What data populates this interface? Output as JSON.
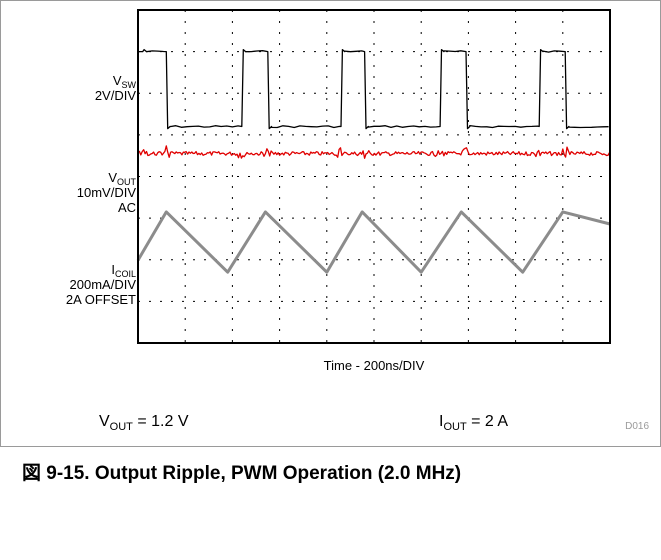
{
  "chart_data": {
    "type": "line",
    "title": "",
    "xlabel": "Time - 200ns/DIV",
    "grid": true,
    "divisions": {
      "x": 10,
      "y": 8
    },
    "channels": [
      {
        "name_main": "V",
        "name_sub": "SW",
        "scale": "2V/DIV",
        "extra": "",
        "color": "#000000",
        "shape": "square",
        "high_div": 1.0,
        "low_div": 2.8,
        "rise_div": [
          0.1,
          2.2,
          4.3,
          6.4,
          8.5
        ],
        "fall_div": [
          0.6,
          2.75,
          4.8,
          6.95,
          9.05
        ]
      },
      {
        "name_main": "V",
        "name_sub": "OUT",
        "scale": "10mV/DIV",
        "extra": "AC",
        "color": "#e00000",
        "shape": "ripple",
        "center_div": 3.45
      },
      {
        "name_main": "I",
        "name_sub": "COIL",
        "scale": "200mA/DIV",
        "extra": "2A OFFSET",
        "color": "#8c8c8c",
        "shape": "triangle",
        "peak_div": 4.85,
        "valley_div": 6.3,
        "peak_x_div": [
          0.6,
          2.7,
          4.75,
          6.85,
          9.0
        ],
        "valley_x_div": [
          1.9,
          4.0,
          6.0,
          8.15
        ]
      }
    ],
    "figure_id": "D016"
  },
  "conditions": [
    {
      "main": "V",
      "sub": "OUT",
      "rest": " = 1.2 V"
    },
    {
      "main": "I",
      "sub": "OUT",
      "rest": " = 2 A"
    }
  ],
  "caption": "図 9-15. Output Ripple, PWM Operation (2.0 MHz)",
  "colors": {
    "grid": "#000000",
    "border": "#000000",
    "frame": "#9a9a9a"
  }
}
